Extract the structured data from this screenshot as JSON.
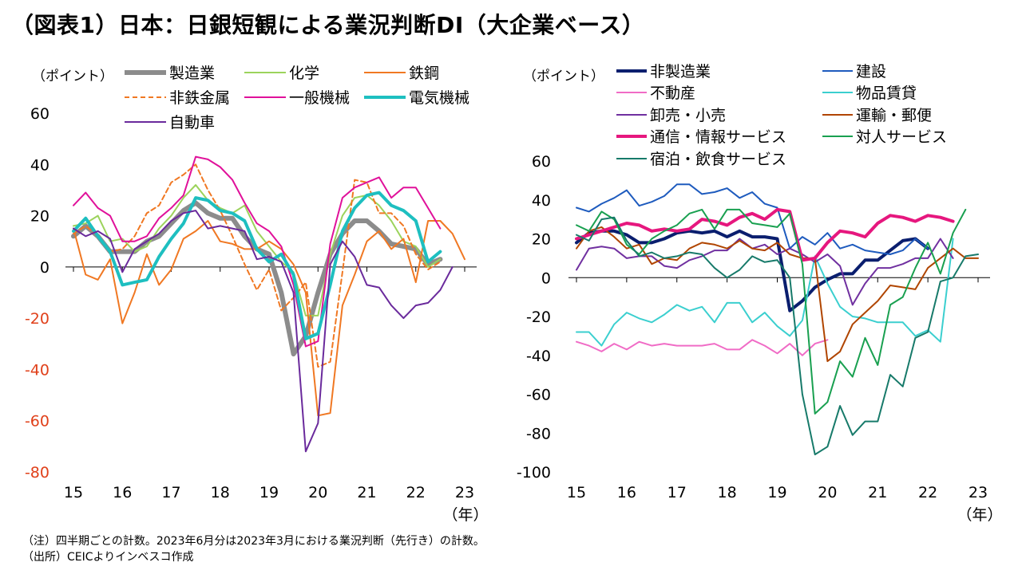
{
  "title": "（図表1）日本：日銀短観による業況判断DI（大企業ベース）",
  "notes": {
    "note": "（注）四半期ごとの計数。2023年6月分は2023年3月における業況判断（先行き）の計数。",
    "source": "（出所）CEICよりインベスコ作成"
  },
  "chart_data": [
    {
      "type": "line",
      "title": "",
      "ylabel": "（ポイント）",
      "xunit": "（年）",
      "ylim": [
        -80,
        60
      ],
      "yticks": [
        "60",
        "40",
        "20",
        "0",
        "-20",
        "-40",
        "-60",
        "-80"
      ],
      "xticks": [
        "15",
        "16",
        "17",
        "18",
        "19",
        "20",
        "21",
        "22",
        "23"
      ],
      "x_start": 2015.0,
      "x_step": 0.25,
      "series": [
        {
          "name": "製造業",
          "color": "#8c8c8c",
          "width": 6,
          "values": [
            12,
            16,
            12,
            6,
            6,
            6,
            10,
            12,
            17,
            22,
            25,
            21,
            19,
            19,
            12,
            7,
            5,
            -10,
            -34,
            -27,
            -10,
            5,
            13,
            18,
            18,
            14,
            9,
            8,
            7,
            1,
            3
          ]
        },
        {
          "name": "化学",
          "color": "#9cd35c",
          "width": 2,
          "values": [
            16,
            17,
            20,
            10,
            11,
            6,
            8,
            15,
            20,
            27,
            32,
            26,
            23,
            21,
            24,
            14,
            8,
            2,
            -2,
            -19,
            -19,
            5,
            20,
            27,
            28,
            24,
            18,
            10,
            8,
            0,
            3
          ]
        },
        {
          "name": "鉄鋼",
          "color": "#f07823",
          "width": 2,
          "values": [
            15,
            -3,
            -5,
            3,
            -22,
            -10,
            5,
            -7,
            -1,
            11,
            14,
            18,
            10,
            9,
            7,
            7,
            10,
            7,
            1,
            -10,
            -58,
            -57,
            -15,
            -3,
            10,
            14,
            7,
            11,
            -6,
            18,
            18,
            13,
            3
          ]
        },
        {
          "name": "非鉄金属",
          "color": "#f07823",
          "width": 2,
          "dash": "6,4",
          "values": [
            13,
            16,
            12,
            6,
            7,
            12,
            21,
            24,
            33,
            36,
            40,
            30,
            22,
            12,
            1,
            -9,
            -1,
            -17,
            -12,
            -6,
            -39,
            -37,
            -2,
            34,
            33,
            21,
            21,
            16,
            5,
            -1,
            2
          ]
        },
        {
          "name": "一般機械",
          "color": "#e0119a",
          "width": 2,
          "values": [
            24,
            29,
            23,
            20,
            10,
            10,
            12,
            19,
            23,
            28,
            43,
            42,
            39,
            34,
            25,
            17,
            14,
            8,
            -7,
            -31,
            -29,
            9,
            27,
            31,
            33,
            35,
            27,
            31,
            31,
            23,
            15
          ]
        },
        {
          "name": "電気機械",
          "color": "#1ebfc0",
          "width": 4,
          "values": [
            14,
            19,
            12,
            6,
            -7,
            -6,
            -5,
            4,
            11,
            17,
            27,
            26,
            22,
            21,
            18,
            7,
            2,
            5,
            -3,
            -28,
            -26,
            -7,
            14,
            23,
            28,
            29,
            24,
            22,
            18,
            2,
            6
          ]
        },
        {
          "name": "自動車",
          "color": "#6a2a9c",
          "width": 2,
          "values": [
            15,
            12,
            14,
            11,
            -2,
            7,
            10,
            13,
            18,
            21,
            22,
            15,
            16,
            15,
            14,
            3,
            4,
            2,
            -10,
            -72,
            -61,
            1,
            10,
            4,
            -7,
            -8,
            -15,
            -20,
            -15,
            -14,
            -9,
            0
          ]
        }
      ]
    },
    {
      "type": "line",
      "title": "",
      "ylabel": "（ポイント）",
      "xunit": "（年）",
      "ylim": [
        -100,
        60
      ],
      "yticks": [
        "60",
        "40",
        "20",
        "0",
        "-20",
        "-40",
        "-60",
        "-80",
        "-100"
      ],
      "xticks": [
        "15",
        "16",
        "17",
        "18",
        "19",
        "20",
        "21",
        "22",
        "23"
      ],
      "x_start": 2015.0,
      "x_step": 0.25,
      "series": [
        {
          "name": "非製造業",
          "color": "#0a1e6e",
          "width": 4,
          "values": [
            18,
            23,
            24,
            24,
            22,
            18,
            18,
            20,
            23,
            24,
            23,
            24,
            21,
            24,
            21,
            21,
            20,
            -17,
            -12,
            -5,
            -1,
            2,
            2,
            9,
            9,
            14,
            19,
            20,
            15
          ]
        },
        {
          "name": "建設",
          "color": "#1e5bbe",
          "width": 2,
          "values": [
            36,
            34,
            38,
            41,
            45,
            37,
            39,
            42,
            48,
            48,
            43,
            44,
            46,
            41,
            44,
            38,
            36,
            15,
            21,
            17,
            23,
            15,
            17,
            14,
            13,
            12,
            14,
            20,
            15
          ]
        },
        {
          "name": "不動産",
          "color": "#f06cc6",
          "width": 2,
          "values": [
            -33,
            -35,
            -38,
            -34,
            -37,
            -33,
            -35,
            -34,
            -35,
            -35,
            -35,
            -34,
            -37,
            -37,
            -32,
            -35,
            -39,
            -34,
            -40,
            -34,
            -32
          ]
        },
        {
          "name": "物品賃貸",
          "color": "#3bcfcf",
          "width": 2,
          "values": [
            -28,
            -28,
            -35,
            -24,
            -18,
            -21,
            -23,
            -19,
            -14,
            -17,
            -15,
            -23,
            -13,
            -13,
            -23,
            -18,
            -25,
            -30,
            -22,
            11,
            -3,
            -15,
            -20,
            -21,
            -23,
            -23,
            -23,
            -30,
            -27,
            -33,
            20
          ]
        },
        {
          "name": "卸売・小売",
          "color": "#7030a0",
          "width": 2,
          "values": [
            4,
            15,
            16,
            15,
            10,
            11,
            11,
            6,
            5,
            9,
            11,
            14,
            14,
            20,
            15,
            17,
            12,
            15,
            12,
            8,
            12,
            6,
            -14,
            -3,
            5,
            5,
            7,
            10,
            10,
            20,
            10
          ]
        },
        {
          "name": "運輸・郵便",
          "color": "#b04500",
          "width": 2,
          "values": [
            15,
            24,
            26,
            21,
            15,
            17,
            7,
            10,
            9,
            15,
            18,
            17,
            15,
            19,
            15,
            14,
            18,
            12,
            10,
            10,
            -43,
            -38,
            -24,
            -18,
            -12,
            -4,
            -5,
            -6,
            5,
            10,
            15,
            10,
            10
          ]
        },
        {
          "name": "通信・情報サービス",
          "color": "#e6177e",
          "width": 4,
          "values": [
            20,
            22,
            24,
            26,
            28,
            27,
            24,
            25,
            24,
            25,
            30,
            29,
            27,
            31,
            33,
            30,
            35,
            34,
            9,
            10,
            18,
            24,
            23,
            21,
            28,
            32,
            31,
            29,
            32,
            31,
            29
          ]
        },
        {
          "name": "対人サービス",
          "color": "#19a050",
          "width": 2,
          "values": [
            27,
            24,
            34,
            30,
            17,
            12,
            20,
            24,
            27,
            33,
            35,
            25,
            35,
            35,
            28,
            27,
            26,
            33,
            7,
            -70,
            -64,
            -43,
            -51,
            -31,
            -45,
            -14,
            -10,
            5,
            18,
            2,
            23,
            35
          ]
        },
        {
          "name": "宿泊・飲食サービス",
          "color": "#177a6a",
          "width": 2,
          "values": [
            22,
            19,
            30,
            31,
            19,
            11,
            13,
            10,
            11,
            13,
            12,
            5,
            0,
            4,
            11,
            8,
            9,
            0,
            -60,
            -91,
            -87,
            -66,
            -81,
            -74,
            -74,
            -50,
            -56,
            -31,
            -28,
            -2,
            0,
            11,
            12
          ]
        }
      ]
    }
  ]
}
